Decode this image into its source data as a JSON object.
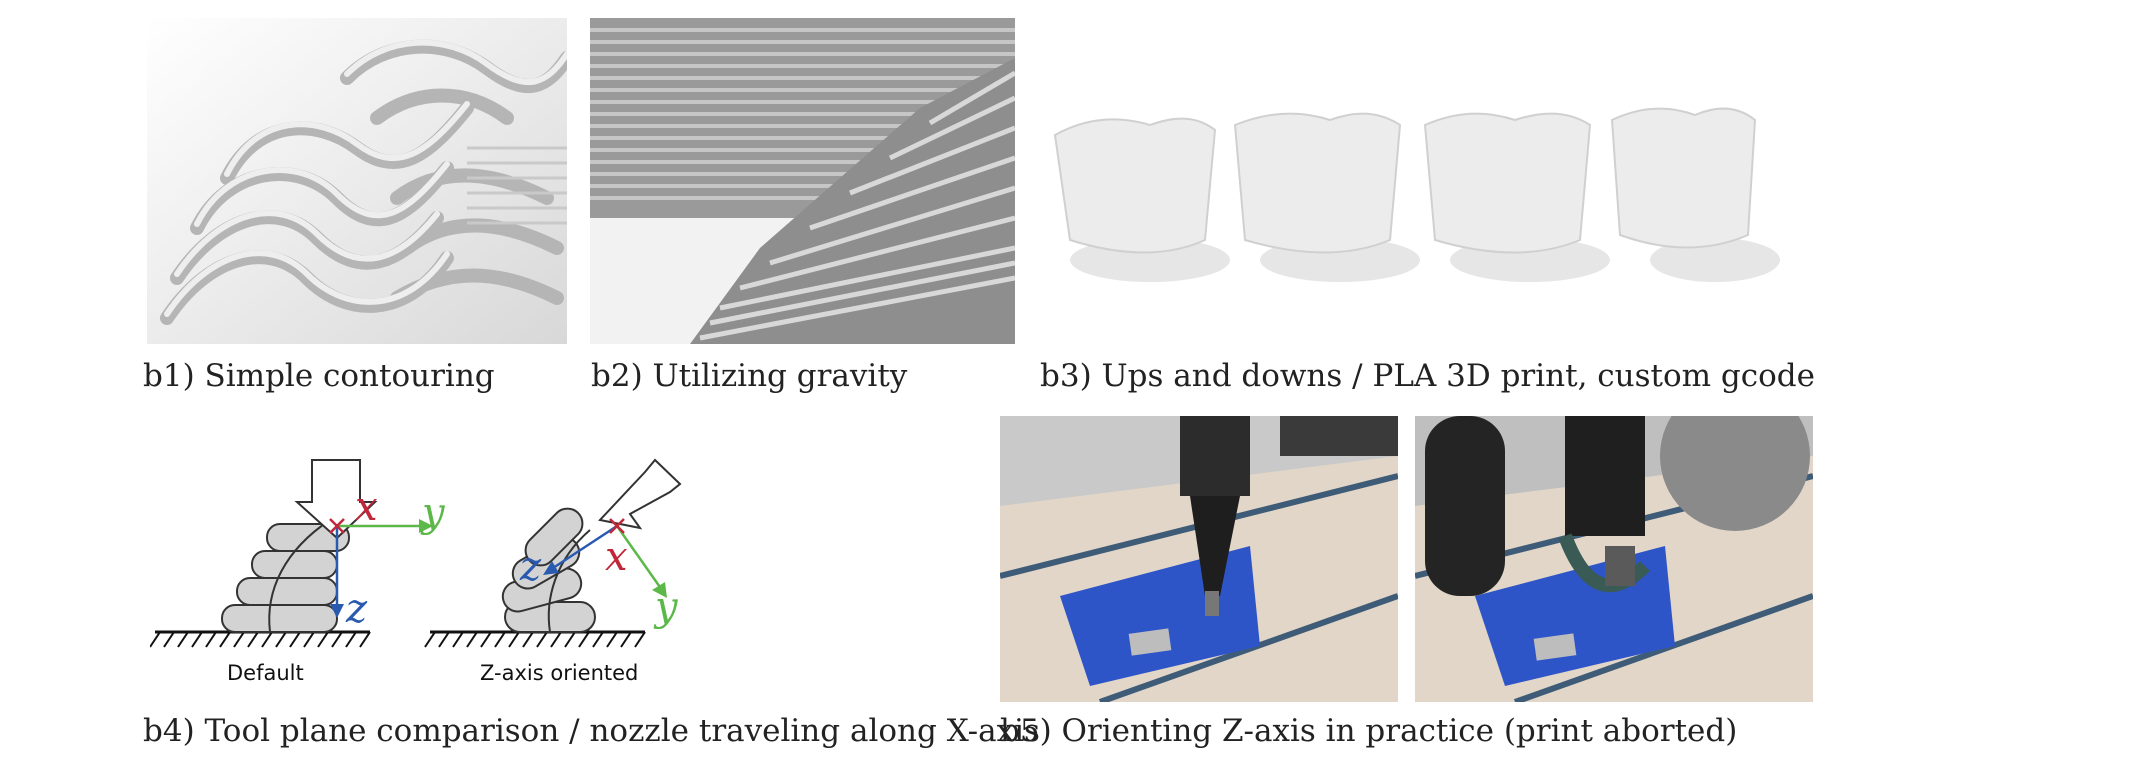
{
  "captions": {
    "b1": "b1) Simple contouring",
    "b2": "b2) Utilizing gravity",
    "b3": "b3) Ups and downs / PLA 3D print, custom gcode",
    "b4": "b4) Tool plane comparison / nozzle traveling along X-axis",
    "b5": "b5) Orienting Z-axis in practice (print aborted)"
  },
  "diagram": {
    "default_label": "Default",
    "oriented_label": "Z-axis oriented",
    "axis_x": "x",
    "axis_y": "y",
    "axis_z": "z"
  },
  "colors": {
    "axis_x": "#c0283a",
    "axis_y": "#5cb848",
    "axis_z": "#2a5ab0",
    "build_plate": "#2d55c8"
  }
}
